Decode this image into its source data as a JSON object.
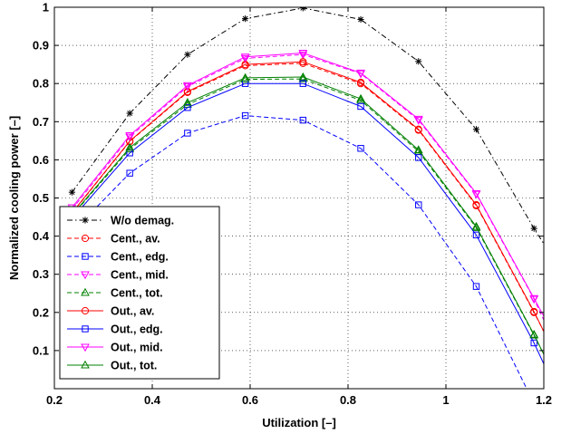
{
  "chart_data": {
    "type": "line",
    "title": "",
    "xlabel": "Utilization [–]",
    "ylabel": "Normalized cooling power [–]",
    "xlim": [
      0.2,
      1.2
    ],
    "ylim": [
      0.0,
      1.0
    ],
    "grid": true,
    "legend_position": "bottom-left",
    "xticks": [
      0.2,
      0.4,
      0.6,
      0.8,
      1.0,
      1.2
    ],
    "xtick_labels": [
      "0.2",
      "0.4",
      "0.6",
      "0.8",
      "1",
      "1.2"
    ],
    "yticks": [
      0.1,
      0.2,
      0.3,
      0.4,
      0.5,
      0.6,
      0.7,
      0.8,
      0.9,
      1.0
    ],
    "ytick_labels": [
      "0.1",
      "0.2",
      "0.3",
      "0.4",
      "0.5",
      "0.6",
      "0.7",
      "0.8",
      "0.9",
      "1"
    ],
    "series": [
      {
        "name": "W/o demag.",
        "color": "#000000",
        "dash": "dashdot",
        "marker": "star",
        "x": [
          0.236,
          0.354,
          0.472,
          0.59,
          0.708,
          0.826,
          0.944,
          1.062,
          1.18,
          1.2
        ],
        "y": [
          0.515,
          0.722,
          0.876,
          0.97,
          0.998,
          0.968,
          0.858,
          0.68,
          0.42,
          0.38
        ],
        "marker_count": 9
      },
      {
        "name": "Cent., av.",
        "color": "#ff0000",
        "dash": "dashed",
        "marker": "circle",
        "x": [
          0.236,
          0.354,
          0.472,
          0.59,
          0.708,
          0.826,
          0.944,
          1.062,
          1.18,
          1.2
        ],
        "y": [
          0.46,
          0.648,
          0.777,
          0.847,
          0.853,
          0.8,
          0.678,
          0.48,
          0.2,
          0.15
        ],
        "marker_count": 9
      },
      {
        "name": "Cent., edg.",
        "color": "#0000ff",
        "dash": "dashed",
        "marker": "square",
        "x": [
          0.236,
          0.354,
          0.472,
          0.59,
          0.708,
          0.826,
          0.944,
          1.062,
          1.165
        ],
        "y": [
          0.41,
          0.565,
          0.67,
          0.716,
          0.704,
          0.63,
          0.482,
          0.268,
          0.0
        ],
        "marker_count": 8
      },
      {
        "name": "Cent., mid.",
        "color": "#ff00ff",
        "dash": "dashed",
        "marker": "triangle-down",
        "x": [
          0.236,
          0.354,
          0.472,
          0.59,
          0.708,
          0.826,
          0.944,
          1.062,
          1.18,
          1.2
        ],
        "y": [
          0.47,
          0.66,
          0.792,
          0.866,
          0.876,
          0.826,
          0.704,
          0.51,
          0.235,
          0.18
        ],
        "marker_count": 9
      },
      {
        "name": "Cent., tot.",
        "color": "#008000",
        "dash": "dashed",
        "marker": "triangle-up",
        "x": [
          0.236,
          0.354,
          0.472,
          0.59,
          0.708,
          0.826,
          0.944,
          1.062,
          1.18,
          1.2
        ],
        "y": [
          0.453,
          0.628,
          0.745,
          0.811,
          0.812,
          0.756,
          0.622,
          0.422,
          0.14,
          0.09
        ],
        "marker_count": 9
      },
      {
        "name": "Out., av.",
        "color": "#ff0000",
        "dash": "solid",
        "marker": "circle",
        "x": [
          0.236,
          0.354,
          0.472,
          0.59,
          0.708,
          0.826,
          0.944,
          1.062,
          1.18,
          1.2
        ],
        "y": [
          0.461,
          0.649,
          0.779,
          0.85,
          0.857,
          0.803,
          0.68,
          0.482,
          0.202,
          0.15
        ],
        "marker_count": 9
      },
      {
        "name": "Out., edg.",
        "color": "#0000ff",
        "dash": "solid",
        "marker": "square",
        "x": [
          0.236,
          0.354,
          0.472,
          0.59,
          0.708,
          0.826,
          0.944,
          1.062,
          1.18,
          1.2
        ],
        "y": [
          0.446,
          0.618,
          0.737,
          0.8,
          0.8,
          0.74,
          0.606,
          0.403,
          0.12,
          0.065
        ],
        "marker_count": 9
      },
      {
        "name": "Out., mid.",
        "color": "#ff00ff",
        "dash": "solid",
        "marker": "triangle-down",
        "x": [
          0.236,
          0.354,
          0.472,
          0.59,
          0.708,
          0.826,
          0.944,
          1.062,
          1.18,
          1.2
        ],
        "y": [
          0.475,
          0.664,
          0.795,
          0.87,
          0.88,
          0.828,
          0.707,
          0.512,
          0.237,
          0.19
        ],
        "marker_count": 9
      },
      {
        "name": "Out., tot.",
        "color": "#008000",
        "dash": "solid",
        "marker": "triangle-up",
        "x": [
          0.236,
          0.354,
          0.472,
          0.59,
          0.708,
          0.826,
          0.944,
          1.062,
          1.18,
          1.2
        ],
        "y": [
          0.455,
          0.632,
          0.75,
          0.815,
          0.817,
          0.76,
          0.626,
          0.425,
          0.142,
          0.09
        ],
        "marker_count": 9
      }
    ]
  }
}
